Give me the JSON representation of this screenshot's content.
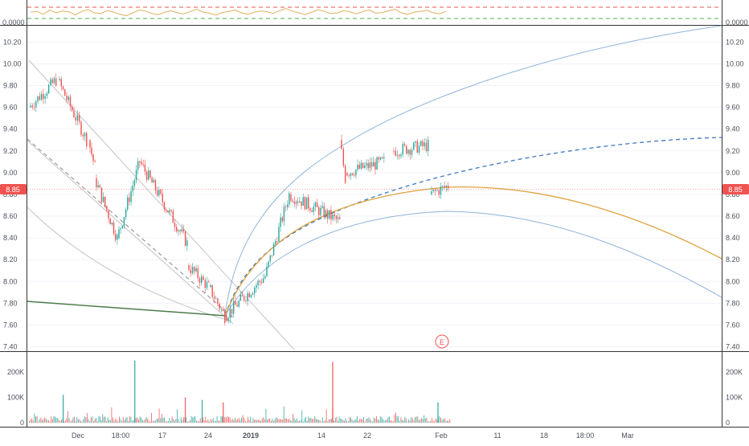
{
  "colors": {
    "up": "#26a69a",
    "down": "#ef5350",
    "price_line": "#ef5350",
    "fib_blue": "#8fb3d9",
    "fib_blue_dash": "#3d79c2",
    "fib_orange": "#e0a340",
    "trend_gray": "#c2c2c2",
    "trend_dark": "#8a8a8a",
    "trend_green": "#4a7d4a",
    "grid": "#f0f3fa",
    "axis_text": "#4c525e"
  },
  "oscillator": {
    "label_left": "0.0000",
    "label_right": "0.0000",
    "values": [
      0.55,
      0.6,
      0.4,
      0.7,
      0.5,
      0.62,
      0.58,
      0.35,
      0.6,
      0.72,
      0.5,
      0.45,
      0.66,
      0.55,
      0.4,
      0.3,
      0.5,
      0.7,
      0.62,
      0.45,
      0.38,
      0.55,
      0.64,
      0.5,
      0.42,
      0.6,
      0.75,
      0.55,
      0.48,
      0.35,
      0.52,
      0.6,
      0.7,
      0.5,
      0.4,
      0.55,
      0.62,
      0.58,
      0.45,
      0.66,
      0.8,
      0.6,
      0.5,
      0.38,
      0.55,
      0.72,
      0.6,
      0.45,
      0.5,
      0.66,
      0.58,
      0.42,
      0.6,
      0.7,
      0.48,
      0.52,
      0.64,
      0.75,
      0.5,
      0.4,
      0.55,
      0.6,
      0.68,
      0.5,
      0.44,
      0.6
    ]
  },
  "price_axis": {
    "ticks": [
      "10.20",
      "10.00",
      "9.80",
      "9.60",
      "9.40",
      "9.20",
      "9.00",
      "8.80",
      "8.60",
      "8.40",
      "8.20",
      "8.00",
      "7.80",
      "7.60",
      "7.40"
    ],
    "current_price": "8.85"
  },
  "volume_axis": {
    "ticks": [
      "200K",
      "100K",
      "0"
    ]
  },
  "time_axis": {
    "labels": [
      {
        "text": "Dec",
        "bold": false
      },
      {
        "text": "18:00",
        "bold": false
      },
      {
        "text": "17",
        "bold": false
      },
      {
        "text": "24",
        "bold": false
      },
      {
        "text": "2019",
        "bold": true
      },
      {
        "text": "14",
        "bold": false
      },
      {
        "text": "22",
        "bold": false
      },
      {
        "text": "Feb",
        "bold": false
      },
      {
        "text": "11",
        "bold": false
      },
      {
        "text": "18",
        "bold": false
      },
      {
        "text": "18:00",
        "bold": false
      },
      {
        "text": "Mar",
        "bold": false
      }
    ]
  },
  "earnings_marker": "E",
  "chart_data": {
    "type": "candlestick",
    "ylim": [
      7.36,
      10.35
    ],
    "volume_ylim": [
      0,
      260000
    ],
    "x_labels": [
      "Dec",
      "18:00",
      "17",
      "24",
      "2019",
      "14",
      "22",
      "Feb",
      "11",
      "18",
      "18:00",
      "Mar"
    ],
    "price_segments": [
      {
        "from": 9.6,
        "to": 9.85
      },
      {
        "from": 9.85,
        "to": 9.3
      },
      {
        "from": 9.3,
        "to": 9.05
      },
      {
        "from": 8.95,
        "to": 8.4
      },
      {
        "from": 8.4,
        "to": 9.1
      },
      {
        "from": 9.1,
        "to": 8.35
      },
      {
        "from": 8.15,
        "to": 7.95
      },
      {
        "from": 7.95,
        "to": 7.68
      },
      {
        "from": 7.68,
        "to": 8.05
      },
      {
        "from": 8.05,
        "to": 8.8
      },
      {
        "from": 8.8,
        "to": 8.55
      },
      {
        "from": 9.3,
        "to": 8.95
      },
      {
        "from": 9.0,
        "to": 9.1
      },
      {
        "from": 9.2,
        "to": 9.25
      },
      {
        "from": 8.8,
        "to": 8.88
      }
    ],
    "last_price": 8.85,
    "volume_spikes": [
      {
        "at": 0.25,
        "value": 245000
      },
      {
        "at": 0.72,
        "value": 240000
      },
      {
        "at": 0.08,
        "value": 110000
      },
      {
        "at": 0.37,
        "value": 100000
      },
      {
        "at": 0.41,
        "value": 90000
      },
      {
        "at": 0.46,
        "value": 80000
      },
      {
        "at": 0.97,
        "value": 80000
      }
    ]
  }
}
